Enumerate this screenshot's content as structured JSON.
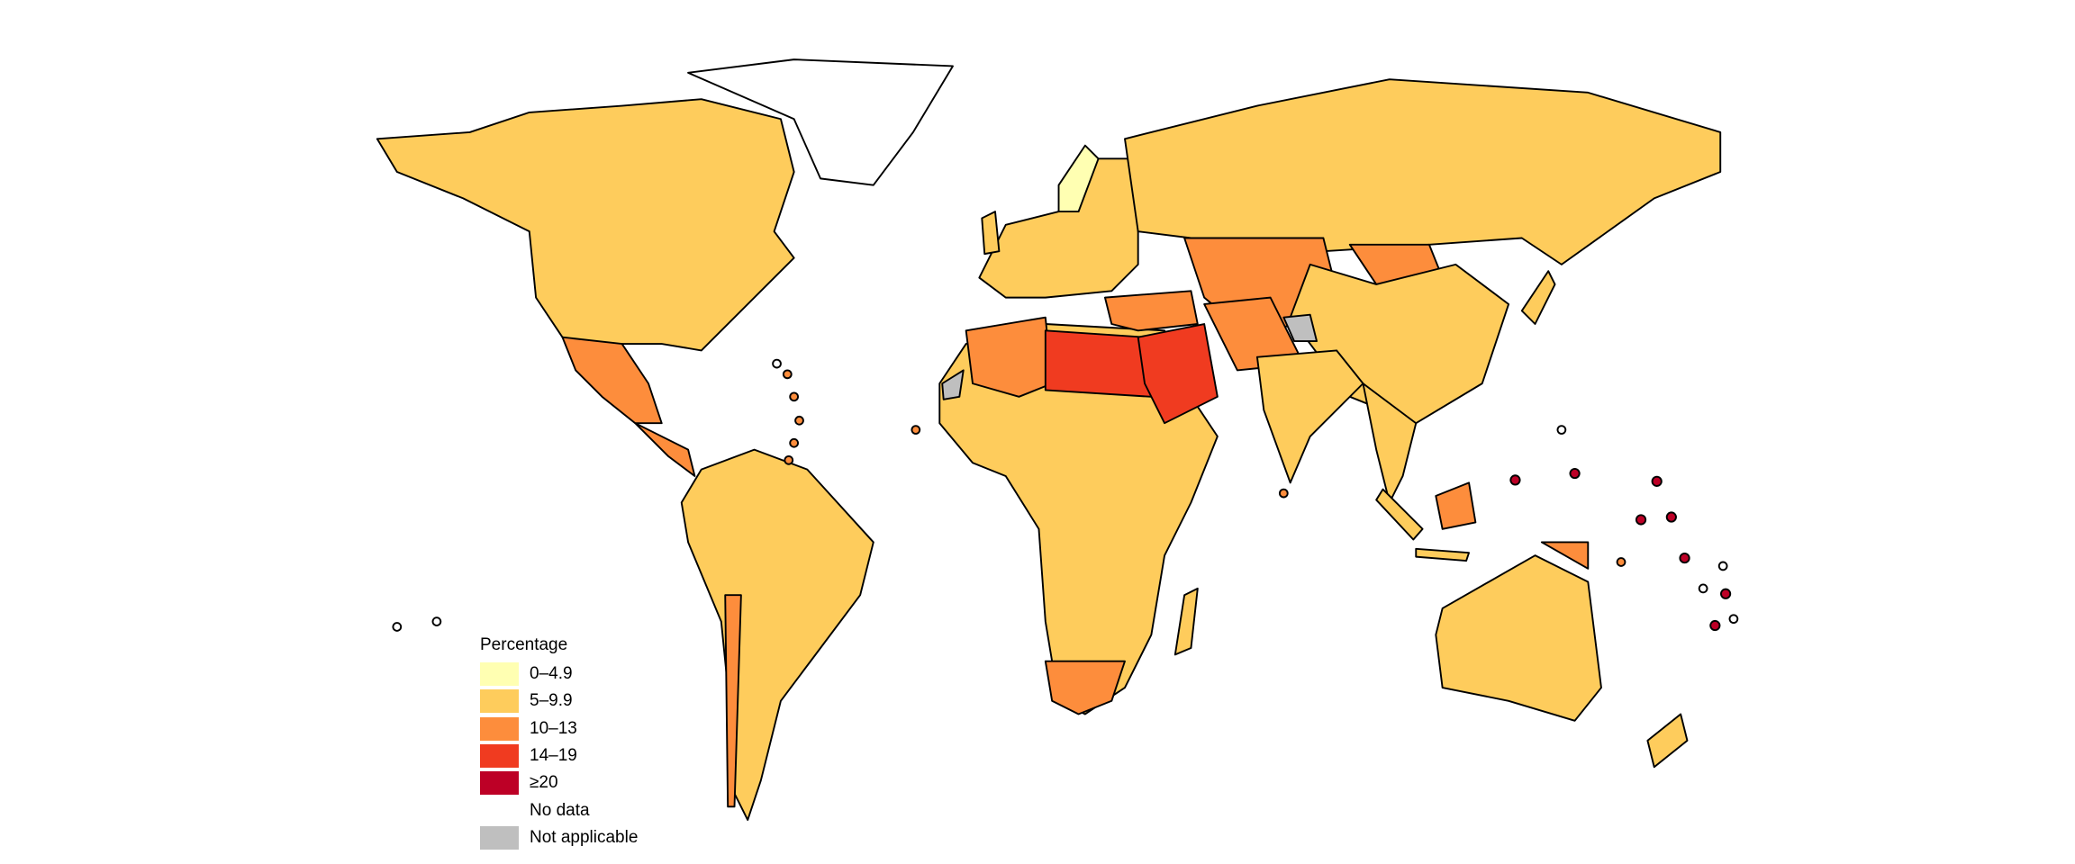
{
  "legend": {
    "title": "Percentage",
    "items": [
      {
        "label": "0–4.9",
        "color": "#FFFFB2"
      },
      {
        "label": "5–9.9",
        "color": "#FECC5C"
      },
      {
        "label": "10–13",
        "color": "#FD8D3C"
      },
      {
        "label": "14–19",
        "color": "#F03B20"
      },
      {
        "label": "≥20",
        "color": "#BD0026"
      },
      {
        "label": "No data",
        "color": "#FFFFFF"
      },
      {
        "label": "Not applicable",
        "color": "#BFBFBF"
      }
    ]
  }
}
